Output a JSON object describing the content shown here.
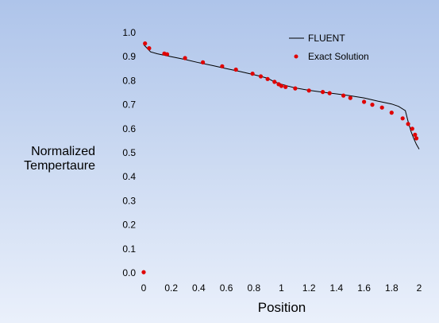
{
  "chart_data": {
    "type": "line",
    "xlabel": "Position",
    "ylabel_lines": [
      "Normalized",
      "Tempertaure"
    ],
    "xlim": [
      0,
      2
    ],
    "ylim": [
      0,
      1
    ],
    "x_ticks": [
      "0",
      "0.2",
      "0.4",
      "0.6",
      "0.8",
      "1",
      "1.2",
      "1.4",
      "1.6",
      "1.8",
      "2"
    ],
    "y_ticks": [
      "0.0",
      "0.1",
      "0.2",
      "0.3",
      "0.4",
      "0.5",
      "0.6",
      "0.7",
      "0.8",
      "0.9",
      "1.0"
    ],
    "legend_position": "top-right",
    "series": [
      {
        "name": "FLUENT",
        "style": "line",
        "color": "#000000",
        "points": [
          [
            0.0,
            0.95
          ],
          [
            0.05,
            0.92
          ],
          [
            0.1,
            0.912
          ],
          [
            0.2,
            0.9
          ],
          [
            0.3,
            0.888
          ],
          [
            0.4,
            0.875
          ],
          [
            0.5,
            0.863
          ],
          [
            0.6,
            0.85
          ],
          [
            0.7,
            0.838
          ],
          [
            0.8,
            0.825
          ],
          [
            0.85,
            0.818
          ],
          [
            0.9,
            0.81
          ],
          [
            0.95,
            0.795
          ],
          [
            1.0,
            0.785
          ],
          [
            1.05,
            0.777
          ],
          [
            1.1,
            0.77
          ],
          [
            1.2,
            0.76
          ],
          [
            1.3,
            0.752
          ],
          [
            1.4,
            0.745
          ],
          [
            1.5,
            0.737
          ],
          [
            1.6,
            0.728
          ],
          [
            1.7,
            0.715
          ],
          [
            1.8,
            0.703
          ],
          [
            1.85,
            0.693
          ],
          [
            1.9,
            0.675
          ],
          [
            1.92,
            0.63
          ],
          [
            1.94,
            0.59
          ],
          [
            1.96,
            0.56
          ],
          [
            1.98,
            0.535
          ],
          [
            2.0,
            0.515
          ]
        ]
      },
      {
        "name": "Exact Solution",
        "style": "markers",
        "color": "#e00000",
        "points": [
          [
            0.0,
            0.003
          ],
          [
            0.01,
            0.955
          ],
          [
            0.04,
            0.935
          ],
          [
            0.15,
            0.913
          ],
          [
            0.17,
            0.91
          ],
          [
            0.3,
            0.894
          ],
          [
            0.43,
            0.876
          ],
          [
            0.57,
            0.86
          ],
          [
            0.67,
            0.846
          ],
          [
            0.79,
            0.829
          ],
          [
            0.85,
            0.818
          ],
          [
            0.9,
            0.807
          ],
          [
            0.95,
            0.795
          ],
          [
            0.98,
            0.785
          ],
          [
            1.0,
            0.778
          ],
          [
            1.03,
            0.774
          ],
          [
            1.1,
            0.768
          ],
          [
            1.2,
            0.759
          ],
          [
            1.3,
            0.753
          ],
          [
            1.35,
            0.748
          ],
          [
            1.45,
            0.738
          ],
          [
            1.5,
            0.728
          ],
          [
            1.6,
            0.712
          ],
          [
            1.66,
            0.7
          ],
          [
            1.73,
            0.688
          ],
          [
            1.8,
            0.667
          ],
          [
            1.88,
            0.643
          ],
          [
            1.92,
            0.62
          ],
          [
            1.95,
            0.6
          ],
          [
            1.97,
            0.575
          ],
          [
            1.98,
            0.56
          ]
        ]
      }
    ]
  }
}
